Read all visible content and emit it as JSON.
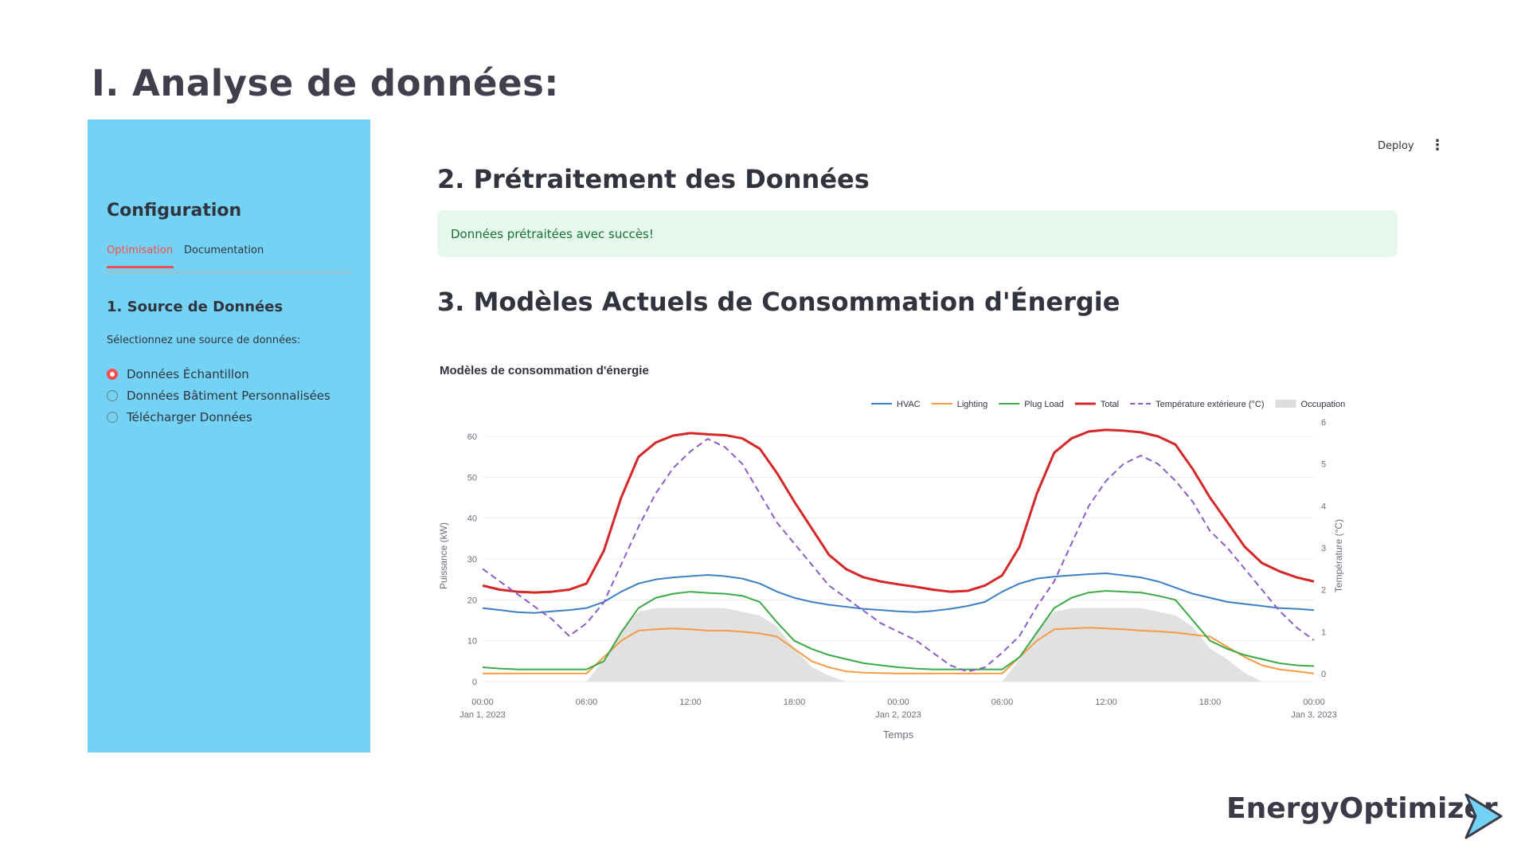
{
  "slide": {
    "title": "I.  Analyse de données:"
  },
  "sidebar": {
    "heading": "Configuration",
    "tabs": [
      {
        "label": "Optimisation",
        "active": true
      },
      {
        "label": "Documentation",
        "active": false
      }
    ],
    "section_title": "1. Source de Données",
    "radio_label": "Sélectionnez une source de données:",
    "radio_options": [
      {
        "label": "Données Échantillon",
        "selected": true
      },
      {
        "label": "Données Bâtiment Personnalisées",
        "selected": false
      },
      {
        "label": "Télécharger Données",
        "selected": false
      }
    ],
    "background": "#74d3f4"
  },
  "toolbar": {
    "deploy_label": "Deploy",
    "menu_icon": "kebab-menu-icon"
  },
  "main": {
    "section2_title": "2. Prétraitement des Données",
    "success_message": "Données prétraitées avec succès!",
    "section3_title": "3. Modèles Actuels de Consommation d'Énergie"
  },
  "chart_data": {
    "type": "line",
    "title": "Modèles de consommation d'énergie",
    "xlabel": "Temps",
    "ylabel": "Puissance (kW)",
    "y2label": "Température (°C)",
    "ylim": [
      0,
      65
    ],
    "y2lim": [
      0,
      6
    ],
    "y_ticks": [
      0,
      10,
      20,
      30,
      40,
      50,
      60
    ],
    "y2_ticks": [
      0,
      1,
      2,
      3,
      4,
      5,
      6
    ],
    "x_ticks": [
      {
        "hour": 0,
        "label": "00:00",
        "sub": "Jan 1, 2023"
      },
      {
        "hour": 6,
        "label": "06:00",
        "sub": ""
      },
      {
        "hour": 12,
        "label": "12:00",
        "sub": ""
      },
      {
        "hour": 18,
        "label": "18:00",
        "sub": ""
      },
      {
        "hour": 24,
        "label": "00:00",
        "sub": "Jan 2, 2023"
      },
      {
        "hour": 30,
        "label": "06:00",
        "sub": ""
      },
      {
        "hour": 36,
        "label": "12:00",
        "sub": ""
      },
      {
        "hour": 42,
        "label": "18:00",
        "sub": ""
      },
      {
        "hour": 48,
        "label": "00:00",
        "sub": "Jan 3, 2023"
      }
    ],
    "legend_position": "top-right",
    "grid": true,
    "x": [
      0,
      1,
      2,
      3,
      4,
      5,
      6,
      7,
      8,
      9,
      10,
      11,
      12,
      13,
      14,
      15,
      16,
      17,
      18,
      19,
      20,
      21,
      22,
      23,
      24,
      25,
      26,
      27,
      28,
      29,
      30,
      31,
      32,
      33,
      34,
      35,
      36,
      37,
      38,
      39,
      40,
      41,
      42,
      43,
      44,
      45,
      46,
      47,
      48
    ],
    "series": [
      {
        "name": "HVAC",
        "axis": "y",
        "color": "#3a7fc4",
        "dash": false,
        "values": [
          18,
          17.5,
          17,
          16.8,
          17.2,
          17.5,
          18,
          19.5,
          22,
          24,
          25,
          25.5,
          25.8,
          26.1,
          25.8,
          25.2,
          24,
          22,
          20.5,
          19.5,
          18.8,
          18.3,
          17.8,
          17.5,
          17.2,
          17,
          17.3,
          17.8,
          18.5,
          19.5,
          22,
          24,
          25.2,
          25.7,
          26,
          26.3,
          26.5,
          26,
          25.5,
          24.5,
          23,
          21.5,
          20.5,
          19.5,
          19,
          18.5,
          18,
          17.8,
          17.5
        ]
      },
      {
        "name": "Lighting",
        "axis": "y",
        "color": "#f59a45",
        "dash": false,
        "values": [
          2,
          2,
          2,
          2,
          2,
          2,
          2,
          6,
          10,
          12.5,
          12.8,
          13,
          12.8,
          12.5,
          12.5,
          12.2,
          11.8,
          11,
          8,
          5,
          3.5,
          2.5,
          2.2,
          2.1,
          2,
          2,
          2,
          2,
          2,
          2,
          2,
          6,
          10,
          12.8,
          13,
          13.2,
          13,
          12.8,
          12.5,
          12.3,
          12,
          11.5,
          11,
          8.5,
          6,
          4,
          3,
          2.5,
          2
        ]
      },
      {
        "name": "Plug Load",
        "axis": "y",
        "color": "#3caa45",
        "dash": false,
        "values": [
          3.5,
          3.2,
          3,
          3,
          3,
          3,
          3,
          5,
          12,
          18,
          20.5,
          21.5,
          22,
          21.7,
          21.5,
          21,
          19.5,
          14.5,
          10,
          8,
          6.5,
          5.5,
          4.5,
          4,
          3.5,
          3.2,
          3,
          3,
          3,
          3,
          3,
          6,
          12,
          18,
          20.5,
          21.8,
          22.2,
          22,
          21.8,
          21,
          20,
          15,
          10,
          8,
          6.5,
          5.5,
          4.5,
          4,
          3.8
        ]
      },
      {
        "name": "Total",
        "axis": "y",
        "color": "#d62728",
        "dash": false,
        "values": [
          23.5,
          22.5,
          22,
          21.8,
          22,
          22.5,
          24,
          32,
          45,
          55,
          58.5,
          60.2,
          60.8,
          60.5,
          60.3,
          59.5,
          57,
          51,
          44,
          37.5,
          31,
          27.5,
          25.5,
          24.5,
          23.8,
          23.2,
          22.5,
          22,
          22.2,
          23.5,
          26,
          33,
          46,
          56,
          59.5,
          61.2,
          61.6,
          61.4,
          61,
          60,
          58,
          52,
          45,
          39,
          33,
          29,
          27,
          25.5,
          24.5
        ]
      },
      {
        "name": "Température extérieure (°C)",
        "axis": "y2",
        "color": "#8b5dc8",
        "dash": true,
        "values": [
          2.5,
          2.2,
          1.9,
          1.6,
          1.3,
          0.9,
          1.2,
          1.7,
          2.6,
          3.5,
          4.3,
          4.9,
          5.3,
          5.6,
          5.4,
          5,
          4.3,
          3.6,
          3.1,
          2.6,
          2.1,
          1.8,
          1.5,
          1.2,
          1,
          0.8,
          0.5,
          0.2,
          0.05,
          0.15,
          0.5,
          0.9,
          1.6,
          2.2,
          3.1,
          4,
          4.6,
          5,
          5.2,
          5,
          4.6,
          4.1,
          3.4,
          3,
          2.5,
          2,
          1.5,
          1.1,
          0.8
        ]
      }
    ],
    "occupancy": {
      "name": "Occupation",
      "color": "#dcdcdc",
      "values": [
        0,
        0,
        0,
        0,
        0,
        0,
        0,
        0.3,
        0.7,
        0.95,
        1,
        1,
        1,
        1,
        1,
        0.95,
        0.9,
        0.75,
        0.45,
        0.2,
        0.08,
        0,
        0,
        0,
        0,
        0,
        0,
        0,
        0,
        0,
        0,
        0.3,
        0.7,
        0.95,
        1,
        1,
        1,
        1,
        1,
        0.95,
        0.9,
        0.75,
        0.45,
        0.3,
        0.12,
        0,
        0,
        0,
        0
      ]
    }
  },
  "brand": {
    "name": "EnergyOptimizer",
    "arrow_icon": "chevron-arrow-icon"
  }
}
